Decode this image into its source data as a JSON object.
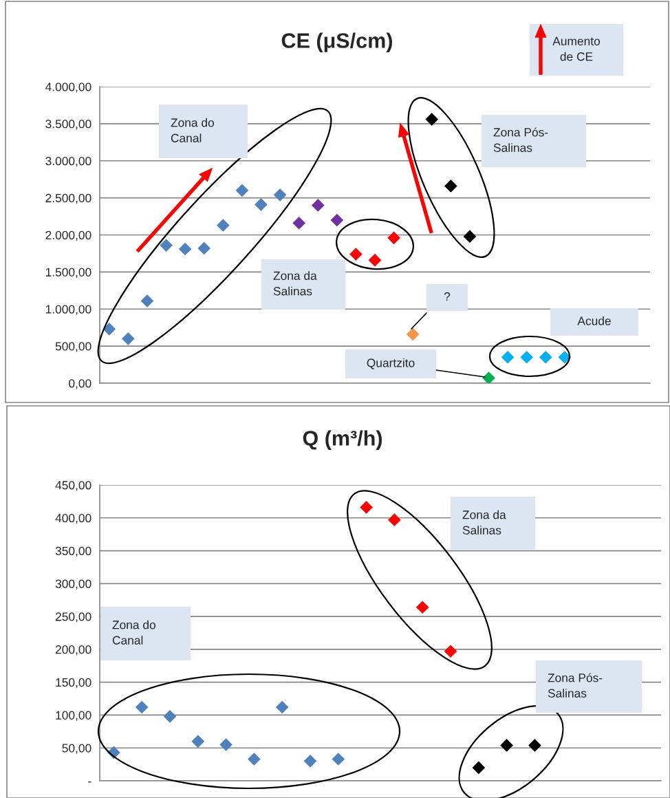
{
  "chart_data": [
    {
      "type": "scatter",
      "title": "CE (μS/cm)",
      "marker": "diamond",
      "grid": "y",
      "tick_labels": "y",
      "categories": [
        null,
        null,
        null,
        null,
        null,
        null,
        null,
        null,
        null,
        null,
        null,
        null,
        null,
        null,
        null,
        null,
        null,
        null,
        null,
        null,
        null,
        null,
        null,
        null,
        null,
        null,
        null,
        null,
        null
      ],
      "ylim": [
        0,
        4000
      ],
      "yticks": [
        {
          "value": 0,
          "label": "0,00"
        },
        {
          "value": 500,
          "label": "500,00"
        },
        {
          "value": 1000,
          "label": "1.000,00"
        },
        {
          "value": 1500,
          "label": "1.500,00"
        },
        {
          "value": 2000,
          "label": "2.000,00"
        },
        {
          "value": 2500,
          "label": "2.500,00"
        },
        {
          "value": 3000,
          "label": "3.000,00"
        },
        {
          "value": 3500,
          "label": "3.500,00"
        },
        {
          "value": 4000,
          "label": "4.000,00"
        }
      ],
      "series": [
        {
          "color": "#4f81bd",
          "values": [
            730,
            600,
            1110,
            1860,
            1810,
            1820,
            2130,
            2600,
            2410,
            2540,
            null,
            null,
            null,
            null,
            null,
            null,
            null,
            null,
            null,
            null,
            null,
            null,
            null,
            null,
            null,
            null,
            null,
            null,
            null
          ]
        },
        {
          "color": "#7030a0",
          "values": [
            null,
            null,
            null,
            null,
            null,
            null,
            null,
            null,
            null,
            null,
            2160,
            2400,
            2200,
            null,
            null,
            null,
            null,
            null,
            null,
            null,
            null,
            null,
            null,
            null,
            null,
            null,
            null,
            null,
            null
          ]
        },
        {
          "color": "#ff0000",
          "values": [
            null,
            null,
            null,
            null,
            null,
            null,
            null,
            null,
            null,
            null,
            null,
            null,
            null,
            1740,
            1660,
            1960,
            null,
            null,
            null,
            null,
            null,
            null,
            null,
            null,
            null,
            null,
            null,
            null,
            null
          ]
        },
        {
          "color": "#f79646",
          "values": [
            null,
            null,
            null,
            null,
            null,
            null,
            null,
            null,
            null,
            null,
            null,
            null,
            null,
            null,
            null,
            null,
            660,
            null,
            null,
            null,
            null,
            null,
            null,
            null,
            null,
            null,
            null,
            null,
            null
          ]
        },
        {
          "color": "#000000",
          "values": [
            null,
            null,
            null,
            null,
            null,
            null,
            null,
            null,
            null,
            null,
            null,
            null,
            null,
            null,
            null,
            null,
            null,
            3560,
            2660,
            1980,
            null,
            null,
            null,
            null,
            null,
            null,
            null,
            null,
            null
          ]
        },
        {
          "color": "#00b050",
          "values": [
            null,
            null,
            null,
            null,
            null,
            null,
            null,
            null,
            null,
            null,
            null,
            null,
            null,
            null,
            null,
            null,
            null,
            null,
            null,
            null,
            70,
            null,
            null,
            null,
            null,
            null,
            null,
            null,
            null
          ]
        },
        {
          "color": "#00b0f0",
          "values": [
            null,
            null,
            null,
            null,
            null,
            null,
            null,
            null,
            null,
            null,
            null,
            null,
            null,
            null,
            null,
            null,
            null,
            null,
            null,
            null,
            null,
            350,
            350,
            350,
            350,
            null,
            null,
            null,
            null
          ]
        }
      ],
      "annotations": [
        "Aumento de CE",
        "Zona do Canal",
        "Zona Pós-Salinas",
        "Zona da Salinas",
        "?",
        "Acude",
        "Quartzito"
      ]
    },
    {
      "type": "scatter",
      "title": "Q (m³/h)",
      "marker": "diamond",
      "grid": "y",
      "tick_labels": "y",
      "categories": [
        null,
        null,
        null,
        null,
        null,
        null,
        null,
        null,
        null,
        null,
        null,
        null,
        null,
        null,
        null,
        null,
        null,
        null,
        null,
        null
      ],
      "ylim": [
        0,
        450
      ],
      "yticks": [
        {
          "value": 0,
          "label": "-"
        },
        {
          "value": 50,
          "label": "50,00"
        },
        {
          "value": 100,
          "label": "100,00"
        },
        {
          "value": 150,
          "label": "150,00"
        },
        {
          "value": 200,
          "label": "200,00"
        },
        {
          "value": 250,
          "label": "250,00"
        },
        {
          "value": 300,
          "label": "300,00"
        },
        {
          "value": 350,
          "label": "350,00"
        },
        {
          "value": 400,
          "label": "400,00"
        },
        {
          "value": 450,
          "label": "450,00"
        }
      ],
      "series": [
        {
          "color": "#4f81bd",
          "values": [
            43,
            112,
            98,
            60,
            55,
            33,
            112,
            30,
            33,
            null,
            null,
            null,
            null,
            null,
            null,
            null,
            null,
            null,
            null,
            null
          ]
        },
        {
          "color": "#ff0000",
          "values": [
            null,
            null,
            null,
            null,
            null,
            null,
            null,
            null,
            null,
            416,
            397,
            264,
            197,
            null,
            null,
            null,
            null,
            null,
            null,
            null
          ]
        },
        {
          "color": "#000000",
          "values": [
            null,
            null,
            null,
            null,
            null,
            null,
            null,
            null,
            null,
            null,
            null,
            null,
            null,
            20,
            54,
            54,
            null,
            null,
            null,
            null
          ]
        }
      ],
      "annotations": [
        "Zona da Salinas",
        "Zona do Canal",
        "Zona Pós-Salinas"
      ]
    }
  ]
}
